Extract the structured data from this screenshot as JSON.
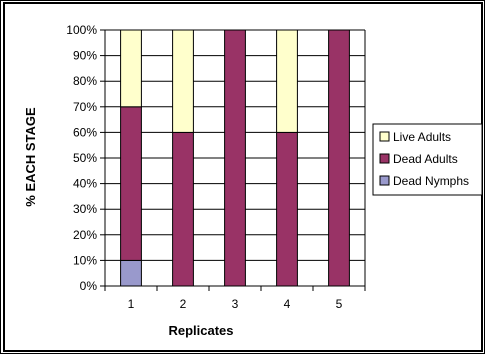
{
  "chart_data": {
    "type": "bar",
    "stacked": true,
    "percent_stacked": true,
    "title": "",
    "xlabel": "Replicates",
    "ylabel": "% EACH STAGE",
    "categories": [
      "1",
      "2",
      "3",
      "4",
      "5"
    ],
    "ylim": [
      0,
      100
    ],
    "yticks": [
      "0%",
      "10%",
      "20%",
      "30%",
      "40%",
      "50%",
      "60%",
      "70%",
      "80%",
      "90%",
      "100%"
    ],
    "grid": true,
    "legend_position": "right",
    "series": [
      {
        "name": "Dead Nymphs",
        "color": "#9999CC",
        "values": [
          10,
          0,
          0,
          0,
          0
        ]
      },
      {
        "name": "Dead Adults",
        "color": "#993366",
        "values": [
          60,
          60,
          100,
          60,
          100
        ]
      },
      {
        "name": "Live Adults",
        "color": "#FFFFCC",
        "values": [
          30,
          40,
          0,
          40,
          0
        ]
      }
    ],
    "legend_order": [
      "Live Adults",
      "Dead Adults",
      "Dead Nymphs"
    ]
  }
}
